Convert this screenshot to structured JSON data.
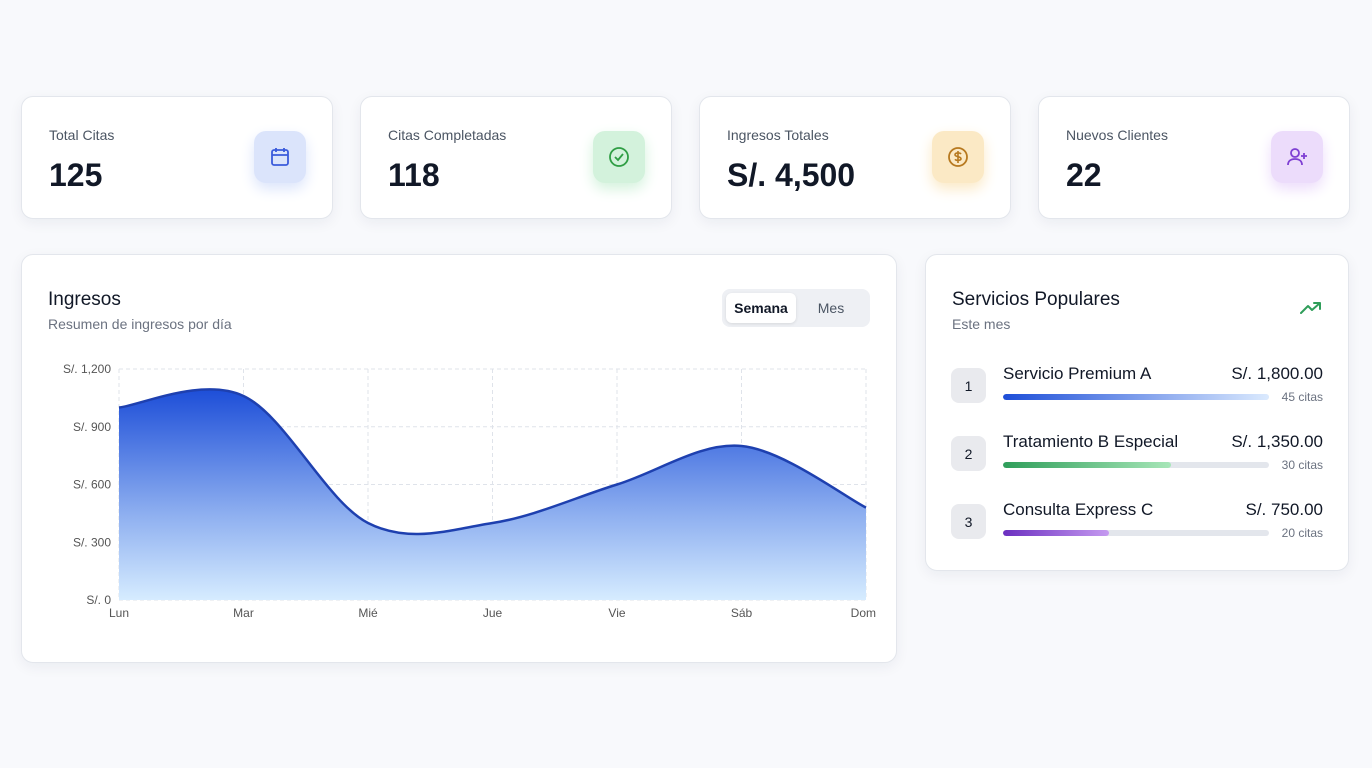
{
  "stats": [
    {
      "label": "Total Citas",
      "value": "125",
      "icon": "calendar-icon",
      "color": "#3b5bdb",
      "bg": "#dbe4fb"
    },
    {
      "label": "Citas Completadas",
      "value": "118",
      "icon": "check-circle-icon",
      "color": "#2f9e44",
      "bg": "#d3f2dc"
    },
    {
      "label": "Ingresos Totales",
      "value": "S/. 4,500",
      "icon": "dollar-circle-icon",
      "color": "#b7791f",
      "bg": "#fbe9c5"
    },
    {
      "label": "Nuevos Clientes",
      "value": "22",
      "icon": "user-plus-icon",
      "color": "#7e3fd3",
      "bg": "#ecdcfb"
    }
  ],
  "income": {
    "title": "Ingresos",
    "subtitle": "Resumen de ingresos por día",
    "tabs": [
      "Semana",
      "Mes"
    ],
    "active_tab": "Semana"
  },
  "chart_data": {
    "type": "area",
    "categories": [
      "Lun",
      "Mar",
      "Mié",
      "Jue",
      "Vie",
      "Sáb",
      "Dom"
    ],
    "values": [
      1000,
      1060,
      400,
      400,
      600,
      800,
      480
    ],
    "ylim": [
      0,
      1200
    ],
    "yticks": [
      0,
      300,
      600,
      900,
      1200
    ],
    "ytick_labels": [
      "S/. 0",
      "S/. 300",
      "S/. 600",
      "S/. 900",
      "S/. 1,200"
    ],
    "grid": true,
    "color": "#1d4ed8"
  },
  "services": {
    "title": "Servicios Populares",
    "subtitle": "Este mes",
    "icon": "trending-up-icon",
    "items": [
      {
        "rank": "1",
        "name": "Servicio Premium A",
        "amount": "S/. 1,800.00",
        "count": "45 citas",
        "fraction": 1.0,
        "color_from": "#1d4ed8",
        "color_to": "#dbeafe"
      },
      {
        "rank": "2",
        "name": "Tratamiento B Especial",
        "amount": "S/. 1,350.00",
        "count": "30 citas",
        "fraction": 0.63,
        "color_from": "#2f9e5a",
        "color_to": "#a7e6b8"
      },
      {
        "rank": "3",
        "name": "Consulta Express C",
        "amount": "S/. 750.00",
        "count": "20 citas",
        "fraction": 0.4,
        "color_from": "#6b2fc0",
        "color_to": "#c59af0"
      }
    ]
  }
}
